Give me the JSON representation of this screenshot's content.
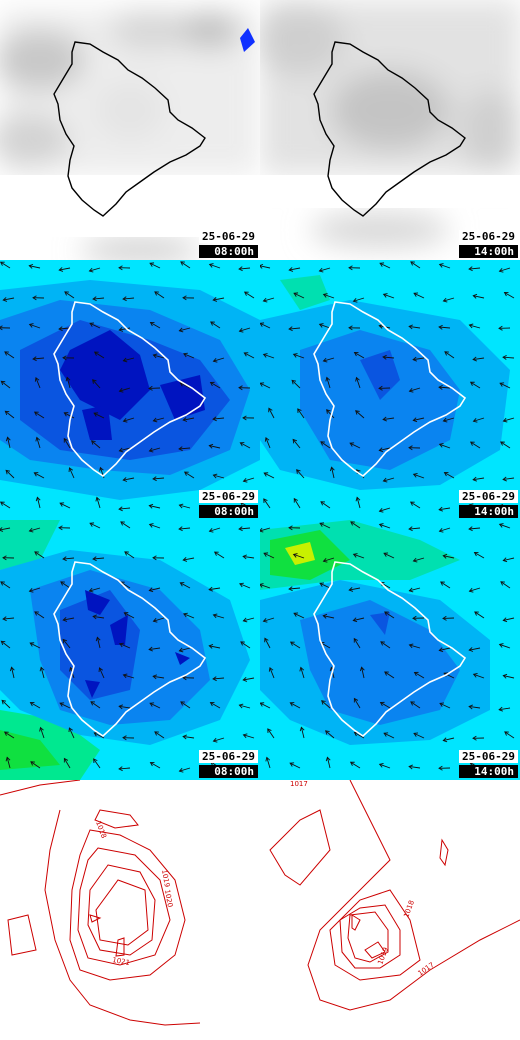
{
  "panels": [
    {
      "id": "cloud-0800",
      "date": "25-06-29",
      "time": "08:00h"
    },
    {
      "id": "cloud-1400",
      "date": "25-06-29",
      "time": "14:00h"
    },
    {
      "id": "wind-a-0800",
      "date": "25-06-29",
      "time": "08:00h"
    },
    {
      "id": "wind-a-1400",
      "date": "25-06-29",
      "time": "14:00h"
    },
    {
      "id": "wind-b-0800",
      "date": "25-06-29",
      "time": "08:00h"
    },
    {
      "id": "wind-b-1400",
      "date": "25-06-29",
      "time": "14:00h"
    }
  ],
  "pressure": {
    "left_labels": [
      "1018",
      "1019",
      "1020",
      "1021"
    ],
    "right_labels": [
      "1017",
      "1018",
      "1019",
      "1017"
    ]
  },
  "colors": {
    "coast": "#000000",
    "coast_on_color": "#ffffff",
    "isobar": "#cc0000",
    "arrow": "#111111"
  }
}
